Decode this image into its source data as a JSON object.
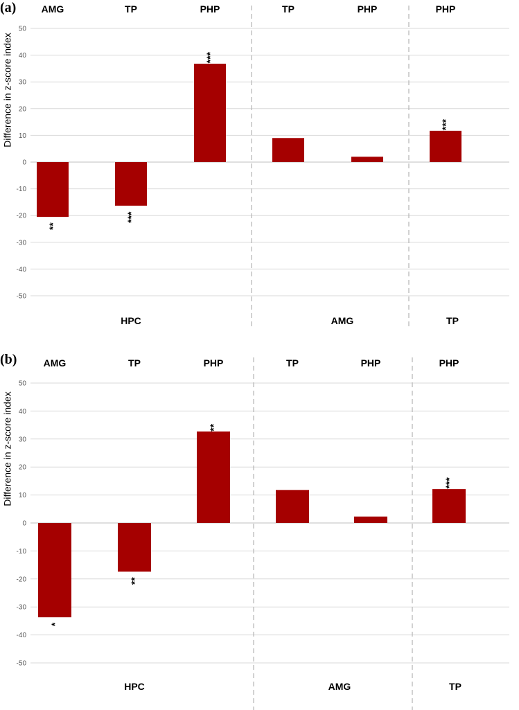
{
  "chart_data": [
    {
      "panel_label": "(a)",
      "type": "bar",
      "ylabel": "Difference in z-score index",
      "ylim": [
        -50,
        50
      ],
      "ytick_step": 10,
      "grid": true,
      "bar_color": "#A50000",
      "groups": [
        {
          "label": "HPC",
          "bars": [
            {
              "category": "AMG",
              "value": -20.5,
              "sig": "**"
            },
            {
              "category": "TP",
              "value": -16.3,
              "sig": "***"
            },
            {
              "category": "PHP",
              "value": 36.8,
              "sig": "***"
            }
          ]
        },
        {
          "label": "AMG",
          "bars": [
            {
              "category": "TP",
              "value": 9.0,
              "sig": ""
            },
            {
              "category": "PHP",
              "value": 2.0,
              "sig": ""
            }
          ]
        },
        {
          "label": "TP",
          "bars": [
            {
              "category": "PHP",
              "value": 11.7,
              "sig": "***"
            }
          ]
        }
      ]
    },
    {
      "panel_label": "(b)",
      "type": "bar",
      "ylabel": "Difference in z-score index",
      "ylim": [
        -50,
        50
      ],
      "ytick_step": 10,
      "grid": true,
      "bar_color": "#A50000",
      "groups": [
        {
          "label": "HPC",
          "bars": [
            {
              "category": "AMG",
              "value": -33.7,
              "sig": "*"
            },
            {
              "category": "TP",
              "value": -17.4,
              "sig": "**"
            },
            {
              "category": "PHP",
              "value": 32.7,
              "sig": "**"
            }
          ]
        },
        {
          "label": "AMG",
          "bars": [
            {
              "category": "TP",
              "value": 11.8,
              "sig": ""
            },
            {
              "category": "PHP",
              "value": 2.3,
              "sig": ""
            }
          ]
        },
        {
          "label": "TP",
          "bars": [
            {
              "category": "PHP",
              "value": 12.1,
              "sig": "***"
            }
          ]
        }
      ]
    }
  ]
}
